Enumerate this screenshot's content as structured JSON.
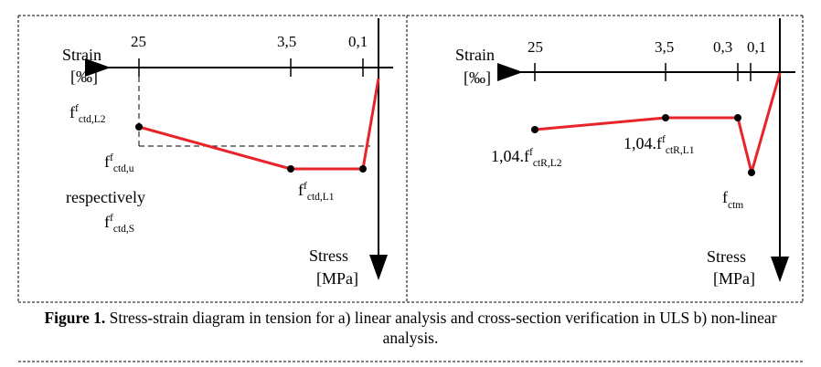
{
  "panel_a": {
    "axis_x_label": "Strain",
    "axis_x_unit": "[‰]",
    "axis_y_label": "Stress",
    "axis_y_unit": "[MPa]",
    "ticks": [
      "25",
      "3,5",
      "0,1"
    ],
    "labels": {
      "l2": {
        "main": "f",
        "sup": "f",
        "sub": "ctd,L2"
      },
      "u": {
        "main": "f",
        "sup": "f",
        "sub": "ctd,u"
      },
      "respectively": "respectively",
      "s": {
        "main": "f",
        "sup": "f",
        "sub": "ctd,S"
      },
      "l1": {
        "main": "f",
        "sup": "f",
        "sub": "ctd,L1"
      }
    }
  },
  "panel_b": {
    "axis_x_label": "Strain",
    "axis_x_unit": "[‰]",
    "axis_y_label": "Stress",
    "axis_y_unit": "[MPa]",
    "ticks": [
      "25",
      "3,5",
      "0,3",
      "0,1"
    ],
    "labels": {
      "l2": {
        "prefix": "1,04.",
        "main": "f",
        "sup": "f",
        "sub": "ctR,L2"
      },
      "l1": {
        "prefix": "1,04.",
        "main": "f",
        "sup": "f",
        "sub": "ctR,L1"
      },
      "ctm": {
        "main": "f",
        "sub": "ctm"
      }
    }
  },
  "caption": {
    "bold": "Figure 1.",
    "text": " Stress-strain diagram in tension for a) linear analysis and cross-section verification in ULS b) non-linear analysis."
  },
  "colors": {
    "curve": "#e8232a",
    "axis": "#000000"
  }
}
